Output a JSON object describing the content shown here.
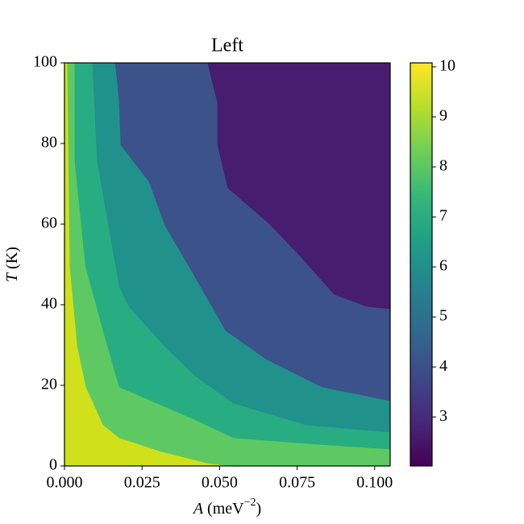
{
  "chart_data": {
    "type": "contourf",
    "title": "Left",
    "xlabel": [
      "A",
      " (meV",
      "−2",
      ")"
    ],
    "ylabel": [
      "T",
      " (K)"
    ],
    "xlim": [
      0,
      0.105
    ],
    "ylim": [
      0,
      100
    ],
    "xticks": [
      {
        "value": 0,
        "label": "0.000"
      },
      {
        "value": 0.025,
        "label": "0.025"
      },
      {
        "value": 0.05,
        "label": "0.050"
      },
      {
        "value": 0.075,
        "label": "0.075"
      },
      {
        "value": 0.1,
        "label": "0.100"
      }
    ],
    "yticks": [
      0,
      20,
      40,
      60,
      80,
      100
    ],
    "base_color": "#d0e11c",
    "contours": [
      {
        "color": "#5ec962",
        "x": [
          0.001,
          0.0018,
          0.0042,
          0.007,
          0.0125,
          0.0177,
          0.0312,
          0.0468,
          0.0545
        ],
        "y": [
          100,
          49.6,
          29.6,
          19.6,
          10.2,
          7,
          3.6,
          0.6,
          0
        ]
      },
      {
        "color": "#27ad81",
        "x": [
          0.0034,
          0.0034,
          0.0068,
          0.0125,
          0.0177,
          0.0418,
          0.0545,
          0.0779,
          0.105
        ],
        "y": [
          100,
          75.6,
          49.6,
          33.6,
          19.6,
          11.6,
          7,
          5.6,
          4.2
        ]
      },
      {
        "color": "#21918c",
        "x": [
          0.0091,
          0.0106,
          0.0177,
          0.0208,
          0.0325,
          0.0418,
          0.0545,
          0.0779,
          0.105
        ],
        "y": [
          100,
          75.6,
          44.6,
          39.6,
          29.6,
          22.6,
          15.6,
          10.2,
          8.4
        ]
      },
      {
        "color": "#3b528b",
        "x": [
          0.0164,
          0.0177,
          0.0182,
          0.0273,
          0.0325,
          0.0416,
          0.052,
          0.0649,
          0.0831,
          0.105
        ],
        "y": [
          100,
          90.6,
          79.6,
          70.6,
          59.6,
          47.6,
          33.6,
          26.6,
          19.6,
          16.2
        ]
      },
      {
        "color": "#471d6f",
        "x": [
          0.0462,
          0.0494,
          0.0494,
          0.0527,
          0.0662,
          0.0766,
          0.087,
          0.0974,
          0.105
        ],
        "y": [
          100,
          90,
          79.6,
          69,
          60,
          51.6,
          42.6,
          39.6,
          39
        ]
      }
    ],
    "colorbar": {
      "lim": [
        2.02,
        10.08
      ],
      "ticks": [
        3,
        4,
        5,
        6,
        7,
        8,
        9,
        10
      ],
      "colors": [
        "#440154",
        "#482878",
        "#3e4989",
        "#31688e",
        "#26828e",
        "#1f9e89",
        "#35b779",
        "#6ece58",
        "#b5de2b",
        "#fde725"
      ]
    }
  }
}
